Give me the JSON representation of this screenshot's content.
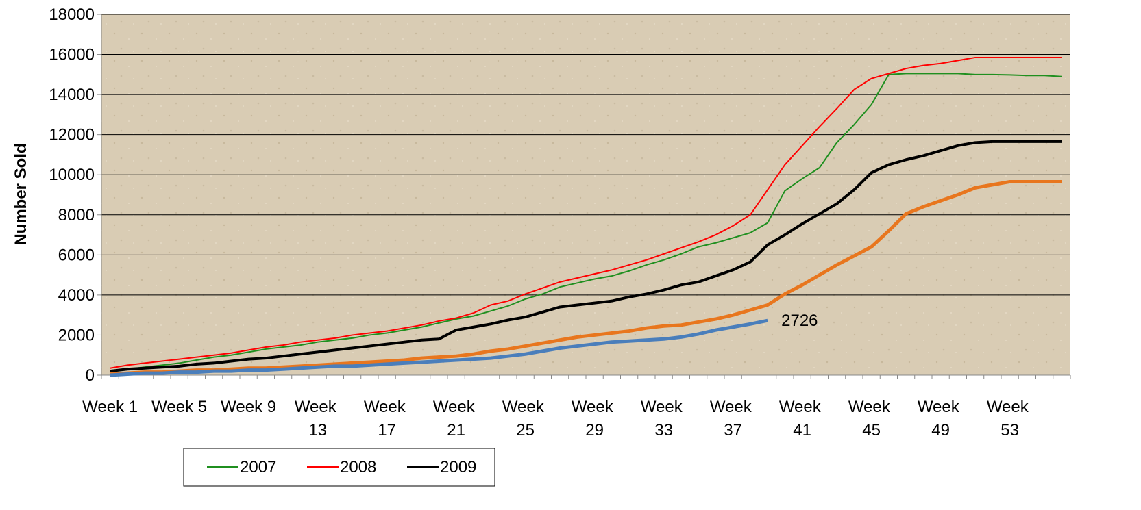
{
  "chart_data": {
    "type": "line",
    "y_label": "Number Sold",
    "categories": [
      "Week 1",
      null,
      null,
      null,
      "Week 5",
      null,
      null,
      null,
      "Week 9",
      null,
      null,
      null,
      "Week 13",
      null,
      null,
      null,
      "Week 17",
      null,
      null,
      null,
      "Week 21",
      null,
      null,
      null,
      "Week 25",
      null,
      null,
      null,
      "Week 29",
      null,
      null,
      null,
      "Week 33",
      null,
      null,
      null,
      "Week 37",
      null,
      null,
      null,
      "Week 41",
      null,
      null,
      null,
      "Week 45",
      null,
      null,
      null,
      "Week 49",
      null,
      null,
      null,
      "Week 53",
      null,
      null,
      null
    ],
    "series": [
      {
        "name": "2007",
        "color": "#1f8f1f",
        "width": 2,
        "values": [
          200,
          300,
          400,
          500,
          600,
          750,
          900,
          1000,
          1150,
          1300,
          1400,
          1500,
          1650,
          1750,
          1850,
          2000,
          2100,
          2250,
          2400,
          2600,
          2800,
          2950,
          3200,
          3450,
          3800,
          4050,
          4400,
          4600,
          4800,
          4950,
          5200,
          5500,
          5750,
          6050,
          6400,
          6600,
          6850,
          7100,
          7600,
          9200,
          9800,
          10350,
          11600,
          12500,
          13500,
          15000,
          15050,
          15050,
          15050,
          15050,
          15000,
          15000,
          14980,
          14950,
          14950,
          14900
        ]
      },
      {
        "name": "2008",
        "color": "#ff0000",
        "width": 2,
        "values": [
          350,
          500,
          600,
          700,
          800,
          900,
          1000,
          1100,
          1250,
          1400,
          1500,
          1650,
          1750,
          1850,
          2000,
          2100,
          2200,
          2350,
          2500,
          2700,
          2850,
          3100,
          3500,
          3700,
          4050,
          4350,
          4650,
          4850,
          5050,
          5250,
          5500,
          5750,
          6050,
          6350,
          6650,
          7000,
          7450,
          8000,
          9250,
          10500,
          11450,
          12400,
          13300,
          14250,
          14800,
          15050,
          15300,
          15450,
          15550,
          15700,
          15850,
          15850,
          15850,
          15850,
          15850,
          15850
        ]
      },
      {
        "name": "2009",
        "color": "#000000",
        "width": 4,
        "values": [
          200,
          300,
          350,
          400,
          450,
          550,
          600,
          700,
          800,
          850,
          950,
          1050,
          1150,
          1250,
          1350,
          1450,
          1550,
          1650,
          1750,
          1800,
          2250,
          2400,
          2550,
          2750,
          2900,
          3150,
          3400,
          3500,
          3600,
          3700,
          3900,
          4050,
          4250,
          4500,
          4650,
          4950,
          5250,
          5650,
          6500,
          7000,
          7550,
          8050,
          8550,
          9250,
          10100,
          10500,
          10750,
          10950,
          11200,
          11450,
          11600,
          11650,
          11650,
          11650,
          11650,
          11650
        ]
      },
      {
        "color": "#e8761e",
        "width": 5,
        "values": [
          50,
          100,
          150,
          150,
          200,
          250,
          250,
          300,
          350,
          350,
          400,
          450,
          500,
          550,
          600,
          650,
          700,
          750,
          850,
          900,
          950,
          1050,
          1200,
          1300,
          1450,
          1600,
          1750,
          1900,
          2000,
          2100,
          2200,
          2350,
          2450,
          2500,
          2650,
          2800,
          3000,
          3250,
          3500,
          4050,
          4500,
          5000,
          5500,
          5950,
          6400,
          7200,
          8050,
          8400,
          8700,
          9000,
          9350,
          9500,
          9650,
          9650,
          9650,
          9650
        ]
      },
      {
        "color": "#4a7ebb",
        "width": 5,
        "values": [
          0,
          50,
          100,
          100,
          150,
          150,
          200,
          200,
          250,
          250,
          300,
          350,
          400,
          450,
          450,
          500,
          550,
          600,
          650,
          700,
          750,
          800,
          850,
          950,
          1050,
          1200,
          1350,
          1450,
          1550,
          1650,
          1700,
          1750,
          1800,
          1900,
          2050,
          2250,
          2400,
          2550,
          2726,
          null,
          null,
          null,
          null,
          null,
          null,
          null,
          null,
          null,
          null,
          null,
          null,
          null,
          null,
          null,
          null,
          null
        ]
      }
    ],
    "ylim": [
      0,
      18000
    ],
    "yticks": [
      0,
      2000,
      4000,
      6000,
      8000,
      10000,
      12000,
      14000,
      16000,
      18000
    ],
    "grid": true,
    "legend": "bottom"
  }
}
